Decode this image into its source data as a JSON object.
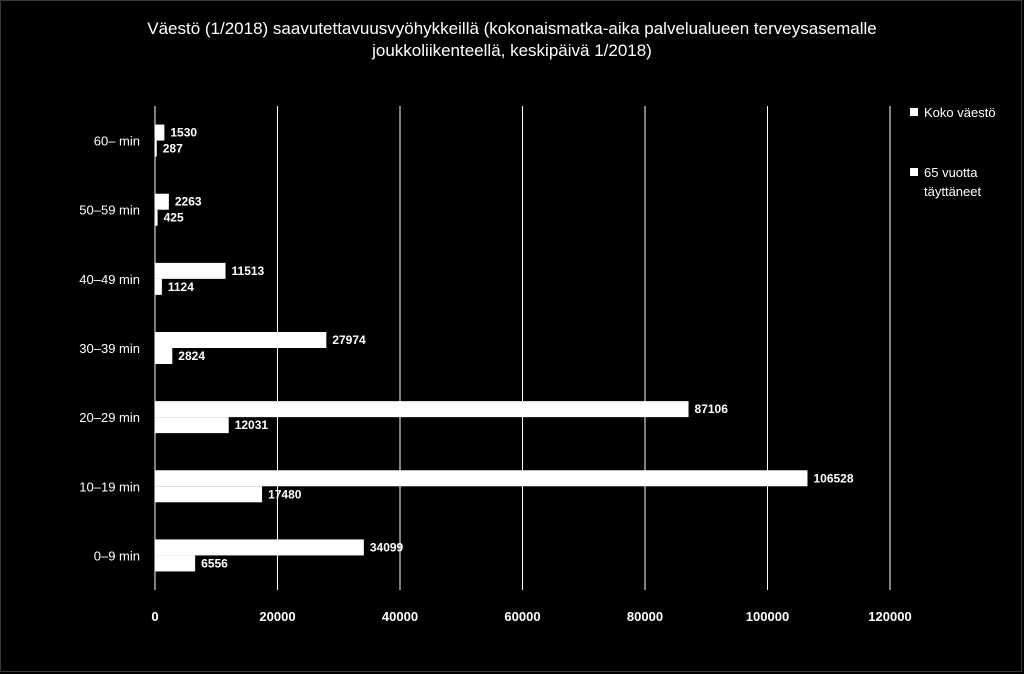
{
  "chart_data": {
    "type": "bar",
    "orientation": "horizontal",
    "title_lines": [
      "Väestö (1/2018) saavutettavuusvyöhykkeillä (kokonaismatka-aika palvelualueen terveysasemalle",
      "joukkoliikenteellä, keskipäivä 1/2018)"
    ],
    "categories": [
      "60– min",
      "50–59 min",
      "40–49 min",
      "30–39 min",
      "20–29 min",
      "10–19 min",
      "0–9 min"
    ],
    "series": [
      {
        "name": "Koko väestö",
        "values": [
          1530,
          2263,
          11513,
          27974,
          87106,
          106528,
          34099
        ]
      },
      {
        "name": "65 vuotta täyttäneet",
        "values": [
          287,
          425,
          1124,
          2824,
          12031,
          17480,
          6556
        ]
      }
    ],
    "xlim": [
      0,
      120000
    ],
    "xticks": [
      0,
      20000,
      40000,
      60000,
      80000,
      100000,
      120000
    ],
    "grid": "vertical",
    "legend_position": "right",
    "bar_color": "#ffffff",
    "background": "#000000"
  }
}
